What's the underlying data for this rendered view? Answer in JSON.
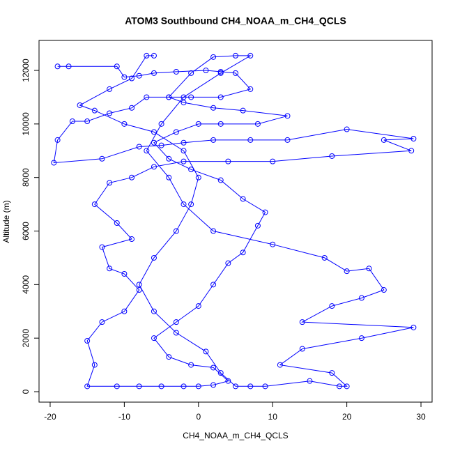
{
  "chart_data": {
    "type": "line",
    "title": "ATOM3 Southbound CH4_NOAA_m_CH4_QCLS",
    "x_label": "CH4_NOAA_m_CH4_QCLS",
    "y_label": "Altitude (m)",
    "xlim": [
      -21.5,
      31.5
    ],
    "ylim": [
      -390,
      13120
    ],
    "xticks": [
      -20,
      -10,
      0,
      10,
      20,
      30
    ],
    "yticks": [
      0,
      2000,
      4000,
      6000,
      8000,
      10000,
      12000
    ],
    "color": "#0000ff",
    "markers": true,
    "x": [
      -19,
      -17.5,
      -11,
      -10,
      -8,
      -6,
      -3,
      1,
      3,
      5,
      7,
      3,
      -1,
      -4,
      -7,
      -9,
      -12,
      -15,
      -17,
      -19,
      -19.5,
      -13,
      -8,
      -5,
      -2,
      2,
      7,
      12,
      20,
      29,
      25,
      28.7,
      18,
      10,
      4,
      -2,
      -6,
      -9,
      -12,
      -14,
      -11,
      -9,
      -13,
      -12,
      -10,
      -8,
      -10,
      -13,
      -15,
      -14,
      -15,
      -11,
      -8,
      -5,
      -2,
      0,
      2,
      4,
      2,
      -1,
      -4,
      -6,
      -3,
      0,
      2,
      4,
      6,
      8,
      9,
      6,
      3,
      -1,
      -4,
      -6,
      -3,
      0,
      3,
      8,
      12,
      6,
      2,
      -2,
      -4,
      -1,
      2,
      5,
      7,
      3,
      -2,
      -5,
      -7,
      -4,
      -2,
      2,
      10,
      17,
      20,
      23,
      25,
      22,
      18,
      14,
      29,
      22,
      14,
      11,
      18,
      20,
      19,
      15,
      9,
      7,
      5,
      3,
      1,
      -3,
      -6,
      -8,
      -6,
      -3,
      -1,
      0,
      -2,
      -6,
      -10,
      -14,
      -16,
      -12,
      -9,
      -7,
      -6
    ],
    "values": [
      12150,
      12150,
      12150,
      11750,
      11800,
      11900,
      11950,
      12000,
      11950,
      11900,
      11300,
      11000,
      11000,
      11000,
      11000,
      10600,
      10400,
      10100,
      10100,
      9400,
      8550,
      8700,
      9150,
      9200,
      9300,
      9400,
      9400,
      9400,
      9800,
      9450,
      9400,
      9000,
      8800,
      8600,
      8600,
      8600,
      8400,
      8000,
      7800,
      7000,
      6300,
      5700,
      5400,
      4600,
      4400,
      3800,
      3000,
      2600,
      1900,
      1000,
      200,
      200,
      200,
      200,
      200,
      200,
      250,
      400,
      900,
      1000,
      1300,
      2000,
      2600,
      3200,
      4000,
      4800,
      5200,
      6200,
      6700,
      7200,
      7900,
      8300,
      8700,
      9300,
      9700,
      10000,
      10000,
      10000,
      10300,
      10500,
      10600,
      10800,
      11000,
      11900,
      12500,
      12550,
      12550,
      11900,
      11000,
      10000,
      9000,
      8000,
      7000,
      6000,
      5500,
      5000,
      4500,
      4600,
      3800,
      3500,
      3200,
      2600,
      2400,
      2000,
      1600,
      1000,
      700,
      200,
      200,
      400,
      200,
      200,
      200,
      700,
      1500,
      2200,
      3000,
      4000,
      5000,
      6000,
      7000,
      8000,
      9000,
      9700,
      10000,
      10500,
      10700,
      11300,
      11700,
      12550,
      12550
    ]
  }
}
